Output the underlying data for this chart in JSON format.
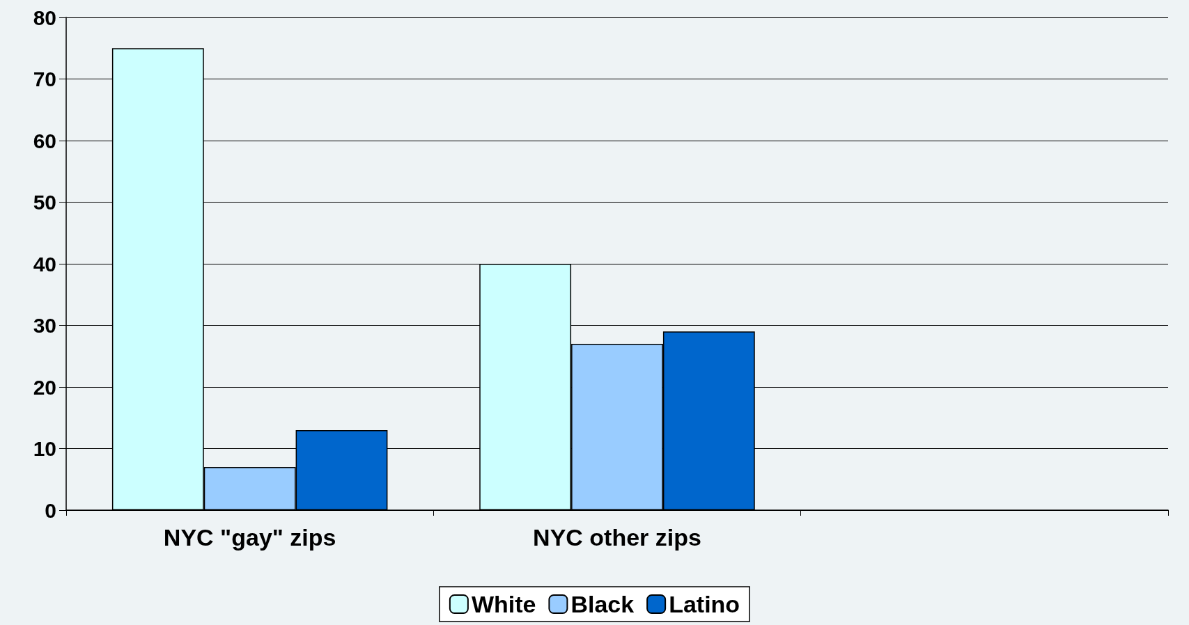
{
  "chart_data": {
    "type": "bar",
    "categories": [
      "NYC \"gay\" zips",
      "NYC other zips",
      null
    ],
    "series": [
      {
        "name": "White",
        "color": "#ccffff",
        "values": [
          75,
          40,
          null
        ]
      },
      {
        "name": "Black",
        "color": "#99ccff",
        "values": [
          7,
          27,
          null
        ]
      },
      {
        "name": "Latino",
        "color": "#0066cc",
        "values": [
          13,
          29,
          null
        ]
      }
    ],
    "ylim": [
      0,
      80
    ],
    "yticks": [
      0,
      10,
      20,
      30,
      40,
      50,
      60,
      70,
      80
    ],
    "grid": "y",
    "legend": "bottom"
  }
}
